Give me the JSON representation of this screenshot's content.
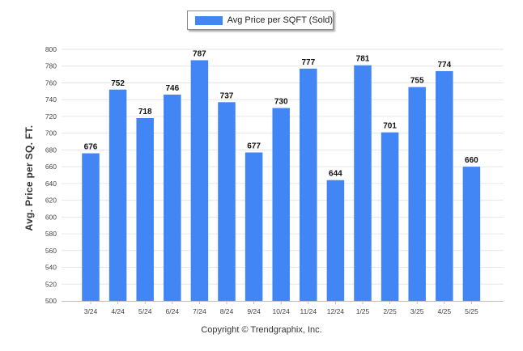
{
  "chart_data": {
    "type": "bar",
    "legend": "Avg Price per SQFT (Sold)",
    "legend_position": "top-center",
    "ylabel": "Avg. Price per SQ. FT.",
    "xlabel": "",
    "ylim": [
      500,
      800
    ],
    "ytick_step": 20,
    "grid": true,
    "bar_color": "#4285f4",
    "categories": [
      "3/24",
      "4/24",
      "5/24",
      "6/24",
      "7/24",
      "8/24",
      "9/24",
      "10/24",
      "11/24",
      "12/24",
      "1/25",
      "2/25",
      "3/25",
      "4/25",
      "5/25"
    ],
    "values": [
      676,
      752,
      718,
      746,
      787,
      737,
      677,
      730,
      777,
      644,
      781,
      701,
      755,
      774,
      660
    ]
  },
  "footer": "Copyright © Trendgraphix, Inc."
}
